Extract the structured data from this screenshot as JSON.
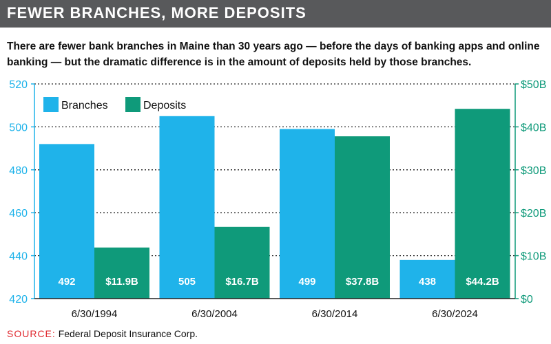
{
  "header": {
    "title": "FEWER BRANCHES, MORE DEPOSITS"
  },
  "subtitle": "There are fewer bank branches in Maine than 30 years ago — before the days of banking apps and online banking — but the dramatic difference is in the amount of deposits held by those branches.",
  "source": {
    "label": "SOURCE:",
    "text": "Federal Deposit Insurance Corp."
  },
  "chart_data": {
    "type": "bar",
    "categories": [
      "6/30/1994",
      "6/30/2004",
      "6/30/2014",
      "6/30/2024"
    ],
    "series": [
      {
        "name": "Branches",
        "axis": "left",
        "values": [
          492,
          505,
          499,
          438
        ],
        "labels": [
          "492",
          "505",
          "499",
          "438"
        ],
        "color": "#1fb3ea"
      },
      {
        "name": "Deposits",
        "axis": "right",
        "values": [
          11.9,
          16.7,
          37.8,
          44.2
        ],
        "labels": [
          "$11.9B",
          "$16.7B",
          "$37.8B",
          "$44.2B"
        ],
        "color": "#0f9a7a"
      }
    ],
    "y_left": {
      "ylim": [
        420,
        520
      ],
      "ticks": [
        "420",
        "440",
        "460",
        "480",
        "500",
        "520"
      ],
      "color": "#1fb3ea"
    },
    "y_right": {
      "ylim": [
        0,
        50
      ],
      "ticks": [
        "$0",
        "$10B",
        "$20B",
        "$30B",
        "$40B",
        "$50B"
      ],
      "color": "#0f9a7a"
    },
    "grid": true,
    "legend": "top-left"
  }
}
